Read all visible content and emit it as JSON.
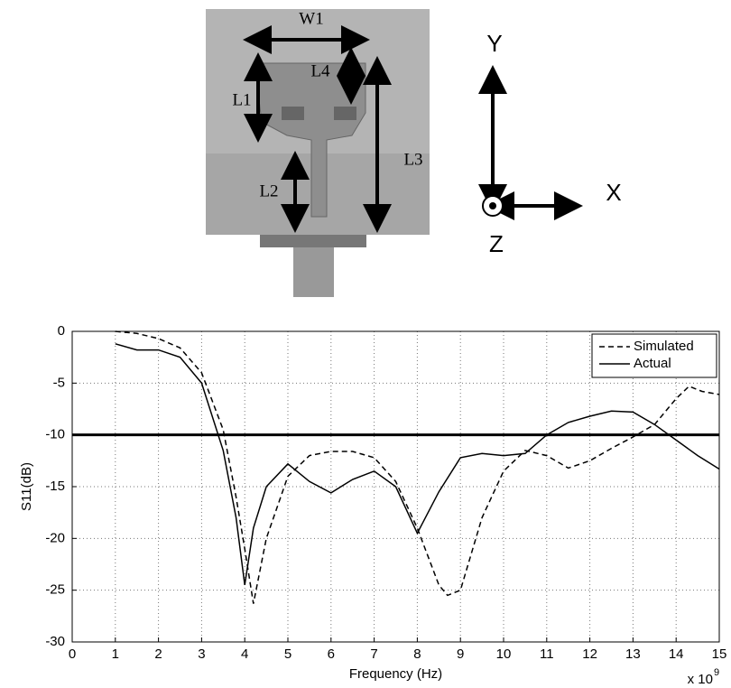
{
  "diagram": {
    "labels": [
      "W1",
      "L4",
      "L1",
      "L3",
      "L2"
    ],
    "axes": [
      "Y",
      "X",
      "Z"
    ]
  },
  "chart_data": {
    "type": "line",
    "x_label": "Frequency (Hz)",
    "y_label": "S11(dB)",
    "x_scale_base": "x 10",
    "x_scale_exponent": "9",
    "xlim": [
      0,
      15
    ],
    "xticks": [
      0,
      1,
      2,
      3,
      4,
      5,
      6,
      7,
      8,
      9,
      10,
      11,
      12,
      13,
      14,
      15
    ],
    "ylim": [
      -30,
      0
    ],
    "yticks": [
      0,
      -5,
      -10,
      -15,
      -20,
      -25,
      -30
    ],
    "grid": true,
    "threshold": -10,
    "legend": "upper right",
    "series": [
      {
        "name": "Simulated",
        "color": "#000000",
        "dash": true,
        "x": [
          1,
          1.5,
          2,
          2.5,
          3,
          3.5,
          3.8,
          4,
          4.2,
          4.5,
          5,
          5.5,
          6,
          6.5,
          7,
          7.5,
          8,
          8.5,
          8.7,
          9,
          9.5,
          10,
          10.5,
          11,
          11.5,
          12,
          12.5,
          13,
          13.5,
          14,
          14.3,
          14.6,
          15
        ],
        "values": [
          0,
          -0.2,
          -0.7,
          -1.6,
          -4,
          -9.5,
          -16,
          -21,
          -26.3,
          -20,
          -14,
          -12,
          -11.6,
          -11.6,
          -12.2,
          -14.5,
          -19,
          -24.5,
          -25.5,
          -25,
          -18,
          -13.5,
          -11.5,
          -12,
          -13.2,
          -12.5,
          -11.3,
          -10.2,
          -9,
          -6.5,
          -5.3,
          -5.8,
          -6.1
        ]
      },
      {
        "name": "Actual",
        "color": "#000000",
        "dash": false,
        "x": [
          1,
          1.5,
          2,
          2.5,
          3,
          3.5,
          3.8,
          4,
          4.2,
          4.5,
          5,
          5.5,
          6,
          6.5,
          7,
          7.5,
          8,
          8.5,
          9,
          9.5,
          10,
          10.5,
          11,
          11.5,
          12,
          12.5,
          13,
          13.5,
          14,
          14.5,
          15
        ],
        "values": [
          -1.2,
          -1.8,
          -1.8,
          -2.5,
          -5,
          -11.5,
          -18,
          -24.5,
          -19,
          -15,
          -12.8,
          -14.5,
          -15.6,
          -14.3,
          -13.5,
          -15,
          -19.5,
          -15.5,
          -12.2,
          -11.8,
          -12,
          -11.8,
          -10,
          -8.8,
          -8.2,
          -7.7,
          -7.8,
          -9,
          -10.5,
          -12,
          -13.3
        ]
      }
    ]
  }
}
